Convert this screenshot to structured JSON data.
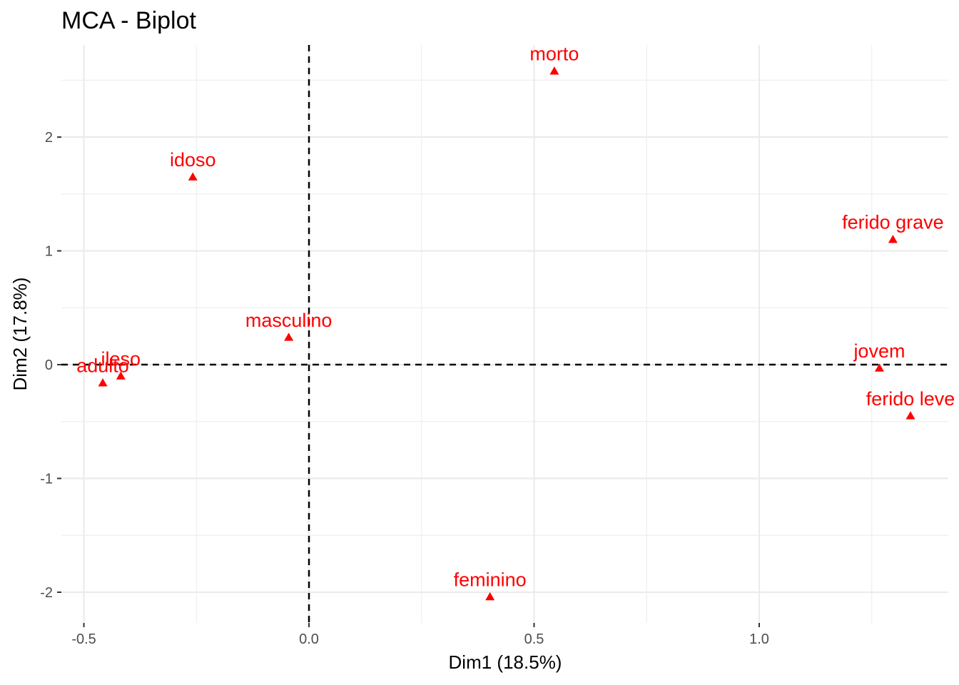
{
  "chart_data": {
    "type": "scatter",
    "title": "MCA - Biplot",
    "xlabel": "Dim1 (18.5%)",
    "ylabel": "Dim2 (17.8%)",
    "xlim": [
      -0.55,
      1.42
    ],
    "ylim": [
      -2.27,
      2.81
    ],
    "x_ticks": [
      -0.5,
      0.0,
      0.5,
      1.0
    ],
    "x_tick_labels": [
      "-0.5",
      "0.0",
      "0.5",
      "1.0"
    ],
    "y_ticks": [
      -2,
      -1,
      0,
      1,
      2
    ],
    "y_tick_labels": [
      "-2",
      "-1",
      "0",
      "1",
      "2"
    ],
    "grid": true,
    "reference_lines": {
      "x": 0,
      "y": 0,
      "style": "dashed"
    },
    "marker": "triangle",
    "point_color": "#ff0000",
    "points": [
      {
        "label": "morto",
        "x": 0.545,
        "y": 2.58
      },
      {
        "label": "idoso",
        "x": -0.258,
        "y": 1.65
      },
      {
        "label": "ferido grave",
        "x": 1.297,
        "y": 1.1
      },
      {
        "label": "masculino",
        "x": -0.045,
        "y": 0.24
      },
      {
        "label": "ileso",
        "x": -0.418,
        "y": -0.1
      },
      {
        "label": "adulto",
        "x": -0.458,
        "y": -0.16
      },
      {
        "label": "jovem",
        "x": 1.267,
        "y": -0.03
      },
      {
        "label": "ferido leve",
        "x": 1.336,
        "y": -0.45
      },
      {
        "label": "feminino",
        "x": 0.402,
        "y": -2.04
      }
    ]
  }
}
